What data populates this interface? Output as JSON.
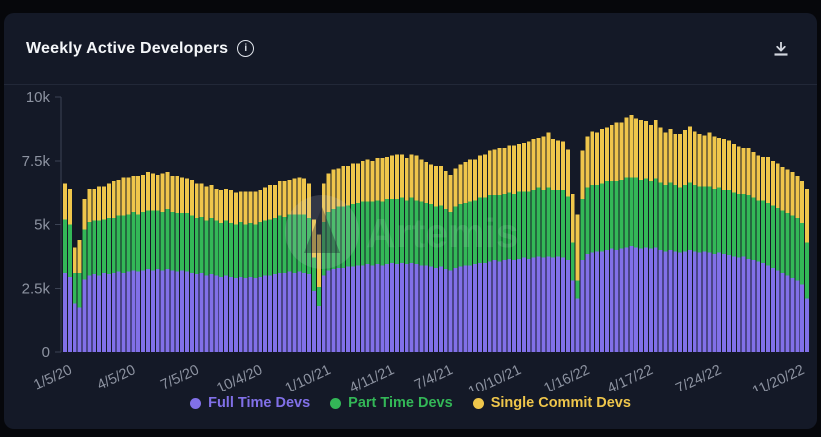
{
  "card": {
    "title": "Weekly Active Developers"
  },
  "watermark": {
    "text": "Artemis"
  },
  "legend": {
    "items": [
      {
        "label": "Full Time Devs"
      },
      {
        "label": "Part Time Devs"
      },
      {
        "label": "Single Commit Devs"
      }
    ]
  },
  "chart_data": {
    "type": "bar",
    "stacked": true,
    "title": "Weekly Active Developers",
    "xlabel": "",
    "ylabel": "",
    "ylim": [
      0,
      10000
    ],
    "grid": false,
    "legend_position": "bottom",
    "background": "#141927",
    "axis_color": "#3c4354",
    "tick_text_color": "#8d93a1",
    "x_unit": "week",
    "y_ticks": [
      {
        "value": 0,
        "label": "0"
      },
      {
        "value": 2500,
        "label": "2.5k"
      },
      {
        "value": 5000,
        "label": "5k"
      },
      {
        "value": 7500,
        "label": "7.5k"
      },
      {
        "value": 10000,
        "label": "10k"
      }
    ],
    "x_tick_labels": [
      {
        "index": 0,
        "label": "1/5/20"
      },
      {
        "index": 13,
        "label": "4/5/20"
      },
      {
        "index": 26,
        "label": "7/5/20"
      },
      {
        "index": 39,
        "label": "10/4/20"
      },
      {
        "index": 53,
        "label": "1/10/21"
      },
      {
        "index": 66,
        "label": "4/11/21"
      },
      {
        "index": 78,
        "label": "7/4/21"
      },
      {
        "index": 92,
        "label": "10/10/21"
      },
      {
        "index": 106,
        "label": "1/16/22"
      },
      {
        "index": 119,
        "label": "4/17/22"
      },
      {
        "index": 133,
        "label": "7/24/22"
      },
      {
        "index": 150,
        "label": "11/20/22"
      }
    ],
    "series": [
      {
        "name": "Full Time Devs",
        "color": "#8170e8",
        "values": [
          3100,
          2950,
          1900,
          1750,
          2850,
          3000,
          3050,
          3000,
          3100,
          3050,
          3100,
          3150,
          3100,
          3150,
          3200,
          3150,
          3200,
          3250,
          3200,
          3250,
          3200,
          3250,
          3200,
          3150,
          3200,
          3150,
          3100,
          3050,
          3100,
          3000,
          3050,
          3000,
          2950,
          3000,
          2950,
          2900,
          2950,
          2900,
          2950,
          2900,
          2950,
          3000,
          3000,
          3050,
          3100,
          3100,
          3150,
          3100,
          3150,
          3100,
          3050,
          2400,
          1800,
          3000,
          3200,
          3250,
          3300,
          3300,
          3350,
          3350,
          3400,
          3400,
          3450,
          3400,
          3450,
          3400,
          3450,
          3500,
          3450,
          3500,
          3450,
          3500,
          3450,
          3400,
          3400,
          3350,
          3300,
          3350,
          3250,
          3200,
          3300,
          3350,
          3400,
          3400,
          3450,
          3500,
          3500,
          3550,
          3600,
          3550,
          3600,
          3650,
          3600,
          3650,
          3700,
          3650,
          3700,
          3750,
          3700,
          3750,
          3700,
          3750,
          3700,
          3600,
          2800,
          2100,
          3600,
          3850,
          3900,
          3950,
          3950,
          4000,
          4050,
          4000,
          4050,
          4100,
          4150,
          4100,
          4050,
          4100,
          4050,
          4100,
          4000,
          3950,
          4000,
          3950,
          3900,
          3950,
          4000,
          3950,
          3900,
          3950,
          3900,
          3850,
          3900,
          3850,
          3800,
          3750,
          3700,
          3750,
          3650,
          3600,
          3550,
          3500,
          3400,
          3300,
          3200,
          3100,
          3000,
          2900,
          2800,
          2650,
          2100
        ]
      },
      {
        "name": "Part Time Devs",
        "color": "#33b757",
        "values": [
          2100,
          2050,
          1200,
          1350,
          1950,
          2100,
          2100,
          2150,
          2100,
          2200,
          2150,
          2200,
          2250,
          2250,
          2300,
          2250,
          2300,
          2300,
          2350,
          2300,
          2300,
          2350,
          2300,
          2300,
          2250,
          2300,
          2250,
          2200,
          2200,
          2150,
          2200,
          2150,
          2100,
          2150,
          2100,
          2100,
          2150,
          2100,
          2100,
          2100,
          2150,
          2150,
          2200,
          2200,
          2250,
          2200,
          2250,
          2300,
          2250,
          2300,
          2200,
          1300,
          750,
          2100,
          2300,
          2350,
          2400,
          2400,
          2400,
          2450,
          2450,
          2500,
          2450,
          2500,
          2500,
          2500,
          2550,
          2500,
          2550,
          2550,
          2500,
          2550,
          2500,
          2500,
          2450,
          2450,
          2400,
          2400,
          2350,
          2300,
          2400,
          2450,
          2450,
          2500,
          2500,
          2550,
          2550,
          2600,
          2550,
          2600,
          2600,
          2600,
          2600,
          2650,
          2600,
          2650,
          2650,
          2700,
          2650,
          2700,
          2650,
          2600,
          2650,
          2500,
          1500,
          700,
          2400,
          2600,
          2650,
          2600,
          2650,
          2700,
          2650,
          2700,
          2700,
          2750,
          2700,
          2750,
          2700,
          2700,
          2650,
          2700,
          2650,
          2600,
          2650,
          2600,
          2550,
          2600,
          2650,
          2600,
          2600,
          2550,
          2600,
          2550,
          2550,
          2500,
          2550,
          2500,
          2500,
          2450,
          2500,
          2450,
          2400,
          2450,
          2450,
          2450,
          2450,
          2450,
          2450,
          2450,
          2450,
          2400,
          2200
        ]
      },
      {
        "name": "Single Commit Devs",
        "color": "#efc64b",
        "values": [
          1400,
          1400,
          1000,
          1300,
          1200,
          1300,
          1250,
          1350,
          1300,
          1350,
          1450,
          1400,
          1500,
          1450,
          1400,
          1500,
          1450,
          1500,
          1450,
          1400,
          1500,
          1450,
          1400,
          1450,
          1400,
          1350,
          1400,
          1350,
          1300,
          1350,
          1300,
          1250,
          1300,
          1250,
          1300,
          1250,
          1200,
          1300,
          1250,
          1300,
          1250,
          1300,
          1350,
          1300,
          1350,
          1400,
          1350,
          1400,
          1450,
          1400,
          1350,
          1500,
          2050,
          1500,
          1500,
          1550,
          1500,
          1600,
          1550,
          1600,
          1550,
          1600,
          1650,
          1600,
          1650,
          1700,
          1650,
          1700,
          1750,
          1700,
          1650,
          1700,
          1750,
          1650,
          1600,
          1550,
          1600,
          1550,
          1500,
          1450,
          1500,
          1550,
          1600,
          1650,
          1600,
          1650,
          1700,
          1750,
          1800,
          1850,
          1800,
          1850,
          1900,
          1850,
          1900,
          1950,
          2000,
          1950,
          2100,
          2150,
          2000,
          1950,
          1900,
          1850,
          1900,
          2600,
          1900,
          2000,
          2100,
          2050,
          2150,
          2100,
          2200,
          2300,
          2250,
          2350,
          2450,
          2300,
          2350,
          2250,
          2200,
          2300,
          2150,
          2050,
          2100,
          2000,
          2100,
          2150,
          2200,
          2100,
          2050,
          2000,
          2100,
          2050,
          1950,
          2000,
          1950,
          1900,
          1850,
          1800,
          1850,
          1800,
          1750,
          1700,
          1800,
          1750,
          1750,
          1700,
          1700,
          1700,
          1650,
          1650,
          2100
        ]
      }
    ]
  }
}
